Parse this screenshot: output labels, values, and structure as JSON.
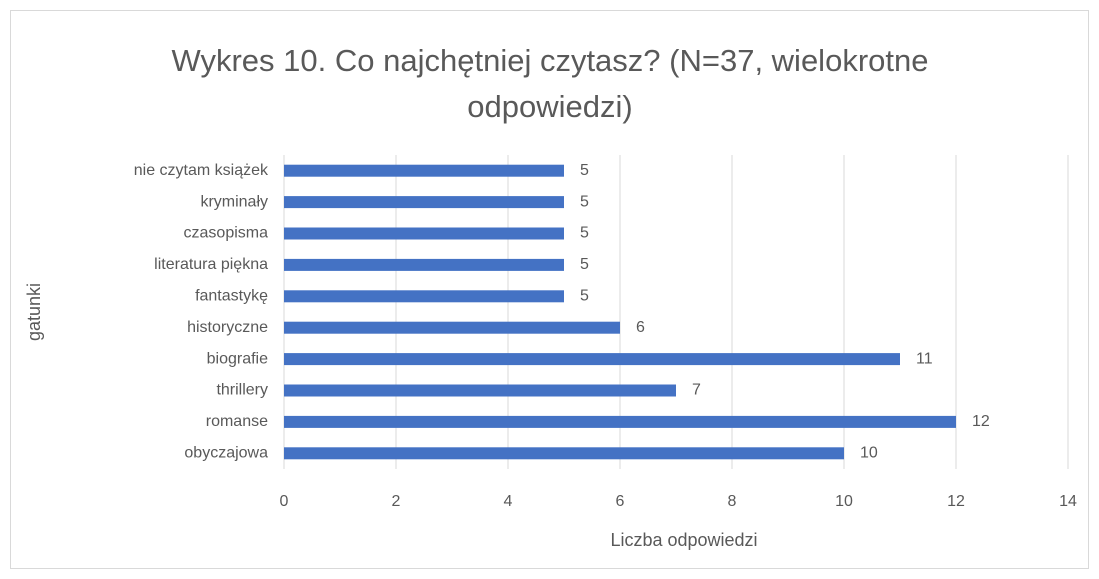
{
  "chart_data": {
    "type": "bar",
    "orientation": "horizontal",
    "title": "Wykres 10. Co najchętniej czytasz? (N=37, wielokrotne odpowiedzi)",
    "x_label": "Liczba odpowiedzi",
    "y_label": "gatunki",
    "categories": [
      "obyczajowa",
      "romanse",
      "thrillery",
      "biografie",
      "historyczne",
      "fantastykę",
      "literatura piękna",
      "czasopisma",
      "kryminały",
      "nie czytam książek"
    ],
    "values": [
      10,
      12,
      7,
      11,
      6,
      5,
      5,
      5,
      5,
      5
    ],
    "color": "#4472c4",
    "xlim": [
      0,
      14
    ],
    "xticks": [
      0,
      2,
      4,
      6,
      8,
      10,
      12,
      14
    ],
    "grid": true
  }
}
